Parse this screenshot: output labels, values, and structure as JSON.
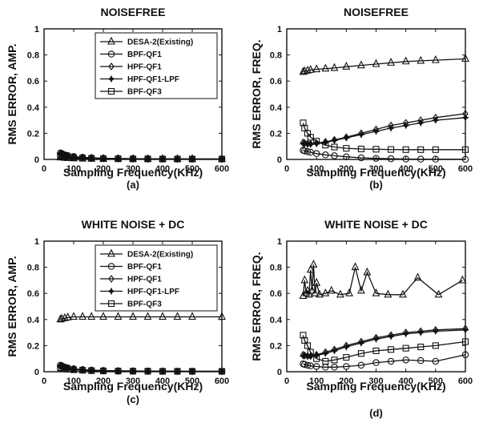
{
  "chart_data": [
    {
      "type": "line",
      "title": "NOISEFREE",
      "xlabel": "Sampling Frequency(KHz)",
      "ylabel": "RMS ERROR, AMP.",
      "caption": "(a)",
      "xlim": [
        0,
        600
      ],
      "ylim": [
        0,
        1
      ],
      "xticks": [
        "0",
        "100",
        "200",
        "300",
        "400",
        "500",
        "600"
      ],
      "yticks": [
        "0",
        "0.2",
        "0.4",
        "0.6",
        "0.8",
        "1"
      ],
      "grid": false,
      "legend": "top-right",
      "series": [
        {
          "name": "DESA-2(Existing)",
          "marker": "triangle",
          "x": [
            55,
            60,
            70,
            80,
            100,
            130,
            160,
            200,
            250,
            300,
            350,
            400,
            450,
            500,
            600
          ],
          "y": [
            0.015,
            0.015,
            0.012,
            0.01,
            0.008,
            0.006,
            0.005,
            0.004,
            0.004,
            0.003,
            0.003,
            0.003,
            0.003,
            0.003,
            0.003
          ]
        },
        {
          "name": "BPF-QF1",
          "marker": "circle",
          "x": [
            55,
            60,
            70,
            80,
            100,
            130,
            160,
            200,
            250,
            300,
            350,
            400,
            450,
            500,
            600
          ],
          "y": [
            0.05,
            0.045,
            0.035,
            0.03,
            0.022,
            0.016,
            0.012,
            0.009,
            0.007,
            0.006,
            0.005,
            0.004,
            0.004,
            0.003,
            0.003
          ]
        },
        {
          "name": "HPF-QF1",
          "marker": "diamond",
          "x": [
            55,
            60,
            70,
            80,
            100,
            130,
            160,
            200,
            250,
            300,
            350,
            400,
            450,
            500,
            600
          ],
          "y": [
            0.045,
            0.04,
            0.032,
            0.027,
            0.02,
            0.015,
            0.011,
            0.008,
            0.006,
            0.005,
            0.004,
            0.004,
            0.003,
            0.003,
            0.003
          ]
        },
        {
          "name": "HPF-QF1-LPF",
          "marker": "star",
          "x": [
            55,
            60,
            70,
            80,
            100,
            130,
            160,
            200,
            250,
            300,
            350,
            400,
            450,
            500,
            600
          ],
          "y": [
            0.04,
            0.035,
            0.03,
            0.025,
            0.018,
            0.014,
            0.01,
            0.008,
            0.006,
            0.005,
            0.004,
            0.003,
            0.003,
            0.003,
            0.003
          ]
        },
        {
          "name": "BPF-QF3",
          "marker": "square",
          "x": [
            55,
            60,
            70,
            80,
            100,
            130,
            160,
            200,
            250,
            300,
            350,
            400,
            450,
            500,
            600
          ],
          "y": [
            0.03,
            0.028,
            0.024,
            0.02,
            0.015,
            0.011,
            0.008,
            0.006,
            0.005,
            0.004,
            0.004,
            0.003,
            0.003,
            0.003,
            0.003
          ]
        }
      ]
    },
    {
      "type": "line",
      "title": "NOISEFREE",
      "xlabel": "Sampling Frequency(KHz)",
      "ylabel": "RMS ERROR, FREQ.",
      "caption": "(b)",
      "xlim": [
        0,
        600
      ],
      "ylim": [
        0,
        1
      ],
      "xticks": [
        "0",
        "100",
        "200",
        "300",
        "400",
        "500",
        "600"
      ],
      "yticks": [
        "0",
        "0.2",
        "0.4",
        "0.6",
        "0.8",
        "1"
      ],
      "grid": false,
      "legend": "none",
      "series": [
        {
          "name": "DESA-2(Existing)",
          "marker": "triangle",
          "x": [
            55,
            60,
            70,
            80,
            100,
            130,
            160,
            200,
            250,
            300,
            350,
            400,
            450,
            500,
            600
          ],
          "y": [
            0.67,
            0.675,
            0.68,
            0.685,
            0.69,
            0.695,
            0.7,
            0.71,
            0.72,
            0.73,
            0.74,
            0.75,
            0.755,
            0.76,
            0.77
          ]
        },
        {
          "name": "BPF-QF1",
          "marker": "circle",
          "x": [
            55,
            60,
            70,
            80,
            100,
            130,
            160,
            200,
            250,
            300,
            350,
            400,
            450,
            500,
            600
          ],
          "y": [
            0.07,
            0.065,
            0.06,
            0.055,
            0.045,
            0.035,
            0.028,
            0.02,
            0.012,
            0.008,
            0.005,
            0.003,
            0.002,
            0.002,
            0.001
          ]
        },
        {
          "name": "HPF-QF1",
          "marker": "diamond",
          "x": [
            55,
            60,
            70,
            80,
            100,
            130,
            160,
            200,
            250,
            300,
            350,
            400,
            450,
            500,
            600
          ],
          "y": [
            0.13,
            0.125,
            0.12,
            0.12,
            0.125,
            0.135,
            0.15,
            0.17,
            0.2,
            0.23,
            0.26,
            0.28,
            0.3,
            0.32,
            0.35
          ]
        },
        {
          "name": "HPF-QF1-LPF",
          "marker": "star",
          "x": [
            55,
            60,
            70,
            80,
            100,
            130,
            160,
            200,
            250,
            300,
            350,
            400,
            450,
            500,
            600
          ],
          "y": [
            0.12,
            0.118,
            0.115,
            0.115,
            0.12,
            0.13,
            0.145,
            0.165,
            0.19,
            0.215,
            0.24,
            0.26,
            0.28,
            0.3,
            0.32
          ]
        },
        {
          "name": "BPF-QF3",
          "marker": "square",
          "x": [
            55,
            60,
            70,
            80,
            100,
            130,
            160,
            200,
            250,
            300,
            350,
            400,
            450,
            500,
            600
          ],
          "y": [
            0.28,
            0.24,
            0.2,
            0.17,
            0.14,
            0.11,
            0.095,
            0.085,
            0.08,
            0.078,
            0.076,
            0.075,
            0.075,
            0.075,
            0.075
          ]
        }
      ]
    },
    {
      "type": "line",
      "title": "WHITE NOISE + DC",
      "xlabel": "Sampling Frequency(KHz)",
      "ylabel": "RMS ERROR, AMP.",
      "caption": "(c)",
      "xlim": [
        0,
        600
      ],
      "ylim": [
        0,
        1
      ],
      "xticks": [
        "0",
        "100",
        "200",
        "300",
        "400",
        "500",
        "600"
      ],
      "yticks": [
        "0",
        "0.2",
        "0.4",
        "0.6",
        "0.8",
        "1"
      ],
      "grid": false,
      "legend": "top-right",
      "series": [
        {
          "name": "DESA-2(Existing)",
          "marker": "triangle",
          "x": [
            55,
            60,
            70,
            80,
            100,
            130,
            160,
            200,
            250,
            300,
            350,
            400,
            450,
            500,
            600
          ],
          "y": [
            0.4,
            0.405,
            0.41,
            0.415,
            0.42,
            0.42,
            0.42,
            0.42,
            0.42,
            0.42,
            0.42,
            0.42,
            0.42,
            0.42,
            0.42
          ]
        },
        {
          "name": "BPF-QF1",
          "marker": "circle",
          "x": [
            55,
            60,
            70,
            80,
            100,
            130,
            160,
            200,
            250,
            300,
            350,
            400,
            450,
            500,
            600
          ],
          "y": [
            0.05,
            0.045,
            0.035,
            0.03,
            0.022,
            0.016,
            0.012,
            0.009,
            0.007,
            0.006,
            0.005,
            0.004,
            0.004,
            0.003,
            0.003
          ]
        },
        {
          "name": "HPF-QF1",
          "marker": "diamond",
          "x": [
            55,
            60,
            70,
            80,
            100,
            130,
            160,
            200,
            250,
            300,
            350,
            400,
            450,
            500,
            600
          ],
          "y": [
            0.045,
            0.04,
            0.032,
            0.027,
            0.02,
            0.015,
            0.011,
            0.008,
            0.006,
            0.005,
            0.004,
            0.004,
            0.003,
            0.003,
            0.003
          ]
        },
        {
          "name": "HPF-QF1-LPF",
          "marker": "star",
          "x": [
            55,
            60,
            70,
            80,
            100,
            130,
            160,
            200,
            250,
            300,
            350,
            400,
            450,
            500,
            600
          ],
          "y": [
            0.04,
            0.035,
            0.03,
            0.025,
            0.018,
            0.014,
            0.01,
            0.008,
            0.006,
            0.005,
            0.004,
            0.003,
            0.003,
            0.003,
            0.003
          ]
        },
        {
          "name": "BPF-QF3",
          "marker": "square",
          "x": [
            55,
            60,
            70,
            80,
            100,
            130,
            160,
            200,
            250,
            300,
            350,
            400,
            450,
            500,
            600
          ],
          "y": [
            0.03,
            0.028,
            0.024,
            0.02,
            0.015,
            0.011,
            0.008,
            0.006,
            0.005,
            0.004,
            0.004,
            0.003,
            0.003,
            0.003,
            0.003
          ]
        }
      ]
    },
    {
      "type": "line",
      "title": "WHITE NOISE + DC",
      "xlabel": "Sampling Frequency(KHz)",
      "ylabel": "RMS ERROR, FREQ.",
      "caption": "(d)",
      "xlim": [
        0,
        600
      ],
      "ylim": [
        0,
        1
      ],
      "xticks": [
        "0",
        "100",
        "200",
        "300",
        "400",
        "500",
        "600"
      ],
      "yticks": [
        "0",
        "0.2",
        "0.4",
        "0.6",
        "0.8",
        "1"
      ],
      "grid": false,
      "legend": "none",
      "series": [
        {
          "name": "DESA-2(Existing)",
          "marker": "triangle",
          "x": [
            55,
            60,
            65,
            70,
            75,
            80,
            85,
            90,
            95,
            100,
            110,
            130,
            150,
            180,
            210,
            230,
            250,
            270,
            300,
            340,
            390,
            440,
            510,
            590
          ],
          "y": [
            0.58,
            0.7,
            0.6,
            0.62,
            0.59,
            0.78,
            0.62,
            0.82,
            0.6,
            0.68,
            0.59,
            0.6,
            0.62,
            0.59,
            0.6,
            0.8,
            0.62,
            0.76,
            0.6,
            0.59,
            0.59,
            0.72,
            0.59,
            0.7
          ]
        },
        {
          "name": "BPF-QF1",
          "marker": "circle",
          "x": [
            55,
            60,
            70,
            80,
            100,
            130,
            160,
            200,
            250,
            300,
            350,
            400,
            450,
            500,
            600
          ],
          "y": [
            0.06,
            0.055,
            0.05,
            0.045,
            0.04,
            0.035,
            0.035,
            0.04,
            0.05,
            0.07,
            0.08,
            0.09,
            0.085,
            0.08,
            0.13
          ]
        },
        {
          "name": "HPF-QF1",
          "marker": "diamond",
          "x": [
            55,
            60,
            70,
            80,
            100,
            130,
            160,
            200,
            250,
            300,
            350,
            400,
            450,
            500,
            600
          ],
          "y": [
            0.13,
            0.125,
            0.12,
            0.12,
            0.13,
            0.15,
            0.17,
            0.2,
            0.23,
            0.26,
            0.28,
            0.3,
            0.31,
            0.32,
            0.33
          ]
        },
        {
          "name": "HPF-QF1-LPF",
          "marker": "star",
          "x": [
            55,
            60,
            70,
            80,
            100,
            130,
            160,
            200,
            250,
            300,
            350,
            400,
            450,
            500,
            600
          ],
          "y": [
            0.12,
            0.12,
            0.118,
            0.12,
            0.125,
            0.14,
            0.16,
            0.19,
            0.22,
            0.25,
            0.27,
            0.29,
            0.3,
            0.31,
            0.32
          ]
        },
        {
          "name": "BPF-QF3",
          "marker": "square",
          "x": [
            55,
            60,
            70,
            80,
            100,
            130,
            160,
            200,
            250,
            300,
            350,
            400,
            450,
            500,
            600
          ],
          "y": [
            0.28,
            0.24,
            0.2,
            0.15,
            0.1,
            0.08,
            0.09,
            0.11,
            0.14,
            0.16,
            0.17,
            0.18,
            0.19,
            0.2,
            0.23
          ]
        }
      ]
    }
  ]
}
